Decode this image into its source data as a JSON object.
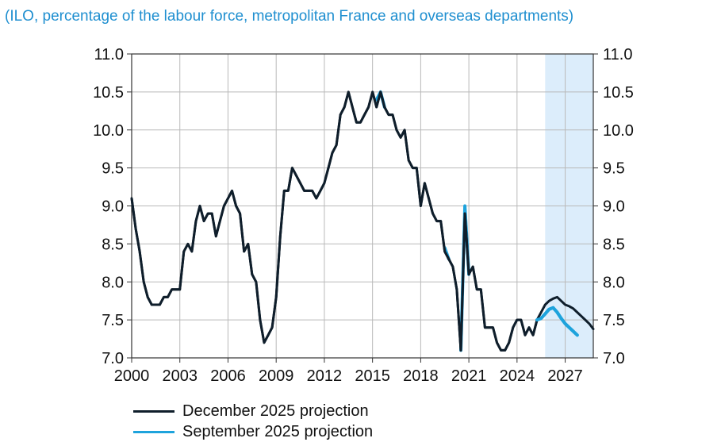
{
  "subtitle": "(ILO, percentage of the labour force, metropolitan France and overseas departments)",
  "chart_data": {
    "type": "line",
    "x_ticks": [
      "2000",
      "2003",
      "2006",
      "2009",
      "2012",
      "2015",
      "2018",
      "2021",
      "2024",
      "2027"
    ],
    "y_ticks": [
      "7.0",
      "7.5",
      "8.0",
      "8.5",
      "9.0",
      "9.5",
      "10.0",
      "10.5",
      "11.0"
    ],
    "xlim": [
      2000,
      2028.75
    ],
    "ylim": [
      7.0,
      11.0
    ],
    "projection_start": 2025.75,
    "grid": true,
    "legend_placement": "bottom-left",
    "colors": {
      "december": "#0f1e2b",
      "september": "#1ea3dc",
      "projection_band": "#dcedfb"
    },
    "series": [
      {
        "name": "December 2025 projection",
        "points": [
          [
            2000.0,
            9.1
          ],
          [
            2000.25,
            8.7
          ],
          [
            2000.5,
            8.4
          ],
          [
            2000.75,
            8.0
          ],
          [
            2001.0,
            7.8
          ],
          [
            2001.25,
            7.7
          ],
          [
            2001.5,
            7.7
          ],
          [
            2001.75,
            7.7
          ],
          [
            2002.0,
            7.8
          ],
          [
            2002.25,
            7.8
          ],
          [
            2002.5,
            7.9
          ],
          [
            2002.75,
            7.9
          ],
          [
            2003.0,
            7.9
          ],
          [
            2003.25,
            8.4
          ],
          [
            2003.5,
            8.5
          ],
          [
            2003.75,
            8.4
          ],
          [
            2004.0,
            8.8
          ],
          [
            2004.25,
            9.0
          ],
          [
            2004.5,
            8.8
          ],
          [
            2004.75,
            8.9
          ],
          [
            2005.0,
            8.9
          ],
          [
            2005.25,
            8.6
          ],
          [
            2005.5,
            8.8
          ],
          [
            2005.75,
            9.0
          ],
          [
            2006.0,
            9.1
          ],
          [
            2006.25,
            9.2
          ],
          [
            2006.5,
            9.0
          ],
          [
            2006.75,
            8.9
          ],
          [
            2007.0,
            8.4
          ],
          [
            2007.25,
            8.5
          ],
          [
            2007.5,
            8.1
          ],
          [
            2007.75,
            8.0
          ],
          [
            2008.0,
            7.5
          ],
          [
            2008.25,
            7.2
          ],
          [
            2008.5,
            7.3
          ],
          [
            2008.75,
            7.4
          ],
          [
            2009.0,
            7.8
          ],
          [
            2009.25,
            8.6
          ],
          [
            2009.5,
            9.2
          ],
          [
            2009.75,
            9.2
          ],
          [
            2010.0,
            9.5
          ],
          [
            2010.25,
            9.4
          ],
          [
            2010.5,
            9.3
          ],
          [
            2010.75,
            9.2
          ],
          [
            2011.0,
            9.2
          ],
          [
            2011.25,
            9.2
          ],
          [
            2011.5,
            9.1
          ],
          [
            2011.75,
            9.2
          ],
          [
            2012.0,
            9.3
          ],
          [
            2012.25,
            9.5
          ],
          [
            2012.5,
            9.7
          ],
          [
            2012.75,
            9.8
          ],
          [
            2013.0,
            10.2
          ],
          [
            2013.25,
            10.3
          ],
          [
            2013.5,
            10.5
          ],
          [
            2013.75,
            10.3
          ],
          [
            2014.0,
            10.1
          ],
          [
            2014.25,
            10.1
          ],
          [
            2014.5,
            10.2
          ],
          [
            2014.75,
            10.3
          ],
          [
            2015.0,
            10.5
          ],
          [
            2015.25,
            10.3
          ],
          [
            2015.5,
            10.5
          ],
          [
            2015.75,
            10.3
          ],
          [
            2016.0,
            10.2
          ],
          [
            2016.25,
            10.2
          ],
          [
            2016.5,
            10.0
          ],
          [
            2016.75,
            9.9
          ],
          [
            2017.0,
            10.0
          ],
          [
            2017.25,
            9.6
          ],
          [
            2017.5,
            9.5
          ],
          [
            2017.75,
            9.5
          ],
          [
            2018.0,
            9.0
          ],
          [
            2018.25,
            9.3
          ],
          [
            2018.5,
            9.1
          ],
          [
            2018.75,
            8.9
          ],
          [
            2019.0,
            8.8
          ],
          [
            2019.25,
            8.8
          ],
          [
            2019.5,
            8.4
          ],
          [
            2019.75,
            8.3
          ],
          [
            2020.0,
            8.2
          ],
          [
            2020.25,
            7.9
          ],
          [
            2020.5,
            7.1
          ],
          [
            2020.75,
            8.9
          ],
          [
            2021.0,
            8.1
          ],
          [
            2021.25,
            8.2
          ],
          [
            2021.5,
            7.9
          ],
          [
            2021.75,
            7.9
          ],
          [
            2022.0,
            7.4
          ],
          [
            2022.25,
            7.4
          ],
          [
            2022.5,
            7.4
          ],
          [
            2022.75,
            7.2
          ],
          [
            2023.0,
            7.1
          ],
          [
            2023.25,
            7.1
          ],
          [
            2023.5,
            7.2
          ],
          [
            2023.75,
            7.4
          ],
          [
            2024.0,
            7.5
          ],
          [
            2024.25,
            7.5
          ],
          [
            2024.5,
            7.3
          ],
          [
            2024.75,
            7.4
          ],
          [
            2025.0,
            7.3
          ],
          [
            2025.25,
            7.5
          ],
          [
            2025.5,
            7.6
          ],
          [
            2025.75,
            7.7
          ],
          [
            2026.0,
            7.75
          ],
          [
            2026.25,
            7.78
          ],
          [
            2026.5,
            7.8
          ],
          [
            2026.75,
            7.75
          ],
          [
            2027.0,
            7.7
          ],
          [
            2027.25,
            7.68
          ],
          [
            2027.5,
            7.65
          ],
          [
            2027.75,
            7.6
          ],
          [
            2028.0,
            7.55
          ],
          [
            2028.25,
            7.5
          ],
          [
            2028.5,
            7.45
          ],
          [
            2028.75,
            7.38
          ]
        ]
      },
      {
        "name": "September 2025 projection",
        "points": [
          [
            2015.25,
            10.4
          ],
          [
            2015.5,
            10.5
          ],
          [
            2015.75,
            10.3
          ],
          [
            2019.5,
            8.45
          ],
          [
            2019.75,
            8.3
          ],
          [
            2020.5,
            7.1
          ],
          [
            2020.75,
            9.0
          ],
          [
            2021.0,
            8.1
          ],
          [
            2025.25,
            7.5
          ],
          [
            2025.5,
            7.52
          ],
          [
            2025.75,
            7.58
          ],
          [
            2026.0,
            7.64
          ],
          [
            2026.25,
            7.66
          ],
          [
            2026.5,
            7.6
          ],
          [
            2026.75,
            7.52
          ],
          [
            2027.0,
            7.45
          ],
          [
            2027.25,
            7.4
          ],
          [
            2027.5,
            7.35
          ],
          [
            2027.75,
            7.3
          ]
        ]
      }
    ]
  }
}
